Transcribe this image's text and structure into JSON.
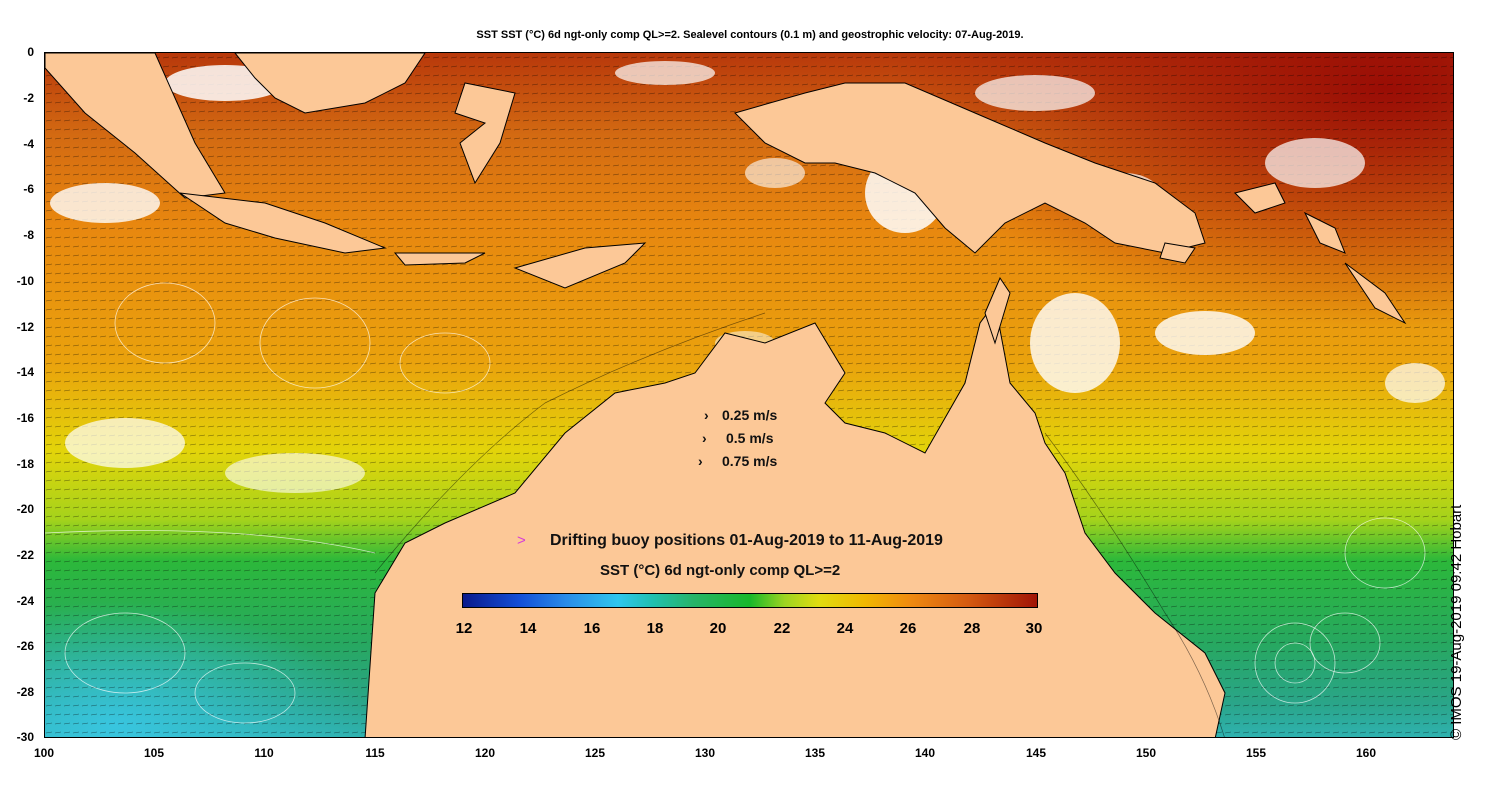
{
  "title": "SST SST (°C) 6d ngt-only comp QL>=2. Sealevel contours (0.1 m) and geostrophic velocity: 07-Aug-2019.",
  "y_ticks": [
    "0",
    "-2",
    "-4",
    "-6",
    "-8",
    "-10",
    "-12",
    "-14",
    "-16",
    "-18",
    "-20",
    "-22",
    "-24",
    "-26",
    "-28",
    "-30"
  ],
  "x_ticks": [
    "100",
    "105",
    "110",
    "115",
    "120",
    "125",
    "130",
    "135",
    "140",
    "145",
    "150",
    "155",
    "160"
  ],
  "velocity_legend": [
    "0.25 m/s",
    "0.5 m/s",
    "0.75 m/s"
  ],
  "buoy_legend": "Drifting buoy positions 01-Aug-2019 to 11-Aug-2019",
  "buoy_marker": ">",
  "colorbar_title": "SST (°C) 6d ngt-only comp QL>=2",
  "colorbar_ticks": [
    "12",
    "14",
    "16",
    "18",
    "20",
    "22",
    "24",
    "26",
    "28",
    "30"
  ],
  "credit": "© IMOS 19-Aug-2019 09:42 Hobart",
  "colors": {
    "land": "#fcc897",
    "cloud": "#ffffff",
    "sst_warm": "#b5280a",
    "sst_orange": "#e9870f",
    "sst_yellow": "#e7d800",
    "sst_green": "#2ab538",
    "sst_cool": "#34c9d9",
    "buoy": "#d63bd9"
  }
}
